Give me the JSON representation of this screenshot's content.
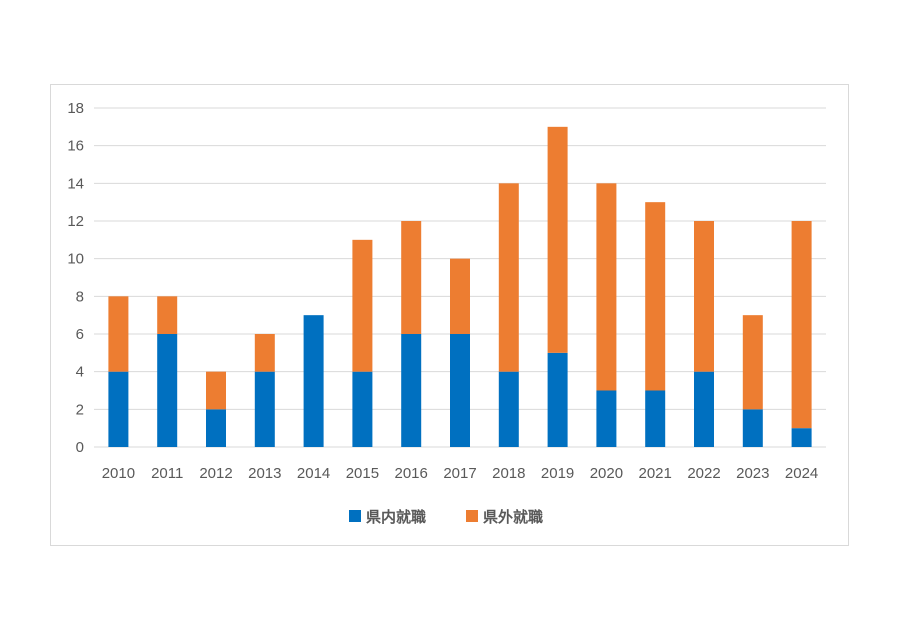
{
  "chart_data": {
    "type": "bar",
    "stacked": true,
    "title": "",
    "xlabel": "",
    "ylabel": "",
    "categories": [
      "2010",
      "2011",
      "2012",
      "2013",
      "2014",
      "2015",
      "2016",
      "2017",
      "2018",
      "2019",
      "2020",
      "2021",
      "2022",
      "2023",
      "2024"
    ],
    "series": [
      {
        "name": "県内就職",
        "color": "#0070c0",
        "values": [
          4,
          6,
          2,
          4,
          7,
          4,
          6,
          6,
          4,
          5,
          3,
          3,
          4,
          2,
          1
        ]
      },
      {
        "name": "県外就職",
        "color": "#ed7d31",
        "values": [
          4,
          2,
          2,
          2,
          0,
          7,
          6,
          4,
          10,
          12,
          11,
          10,
          8,
          5,
          11
        ]
      }
    ],
    "ylim": [
      0,
      18
    ],
    "yticks": [
      0,
      2,
      4,
      6,
      8,
      10,
      12,
      14,
      16,
      18
    ],
    "grid": true,
    "legend": "bottom"
  }
}
